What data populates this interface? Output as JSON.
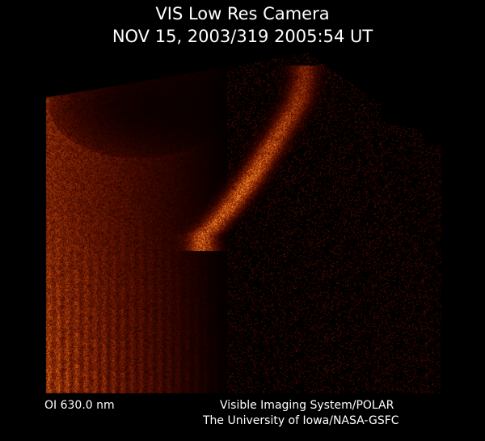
{
  "header": {
    "title": "VIS Low Res Camera",
    "timestamp": "NOV 15, 2003/319 2005:54 UT"
  },
  "footer": {
    "filter": "OI  630.0 nm",
    "credit_line1": "Visible Imaging System/POLAR",
    "credit_line2": "The University of Iowa/NASA-GSFC"
  },
  "colors": {
    "background": "#000000",
    "aurora": "#e0781e",
    "text": "#ffffff"
  }
}
